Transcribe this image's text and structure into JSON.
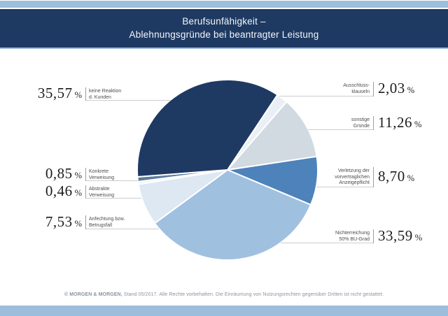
{
  "header": {
    "title_line1": "Berufsunfähigkeit –",
    "title_line2": "Ablehnungsgründe bei beantragter Leistung"
  },
  "footer": {
    "copyright_bold": "© MORGEN & MORGEN,",
    "copyright_rest": " Stand 05/2017. Alle Rechte vorbehalten. Die Einräumung von Nutzungsrechten gegenüber Dritten ist nicht gestattet."
  },
  "colors": {
    "accent_bar": "#9dbedb",
    "header_bg": "#1e3a63",
    "header_text": "#f4f6f8",
    "leader_line": "#c9cdd2",
    "divider_line": "#9aa0a8",
    "percent_text": "#1c1c1c",
    "label_text": "#4d4d4d",
    "footer_text": "#8a93a0",
    "pie_stroke": "#ffffff"
  },
  "chart_data": {
    "type": "pie",
    "title": "Berufsunfähigkeit – Ablehnungsgründe bei beantragter Leistung",
    "unit": "%",
    "legend_position": "callout-labels",
    "start_angle_deg": 33.6,
    "slices": [
      {
        "label": "Ausschlussklauseln",
        "label_lines": [
          "Ausschluss-",
          "klauseln"
        ],
        "value": 2.03,
        "value_text": "2,03",
        "color": "#e9eff5",
        "side": "right"
      },
      {
        "label": "sonstige Gründe",
        "label_lines": [
          "sonstige",
          "Gründe"
        ],
        "value": 11.26,
        "value_text": "11,26",
        "color": "#d1d9e1",
        "side": "right"
      },
      {
        "label": "Verletzung der vorvertraglichen Anzeigepflicht",
        "label_lines": [
          "Verletzung der",
          "vorvertraglichen",
          "Anzeigepflicht"
        ],
        "value": 8.7,
        "value_text": "8,70",
        "color": "#4d82bb",
        "side": "right"
      },
      {
        "label": "Nichterreichung 50% BU-Grad",
        "label_lines": [
          "Nichterreichung",
          "50% BU-Grad"
        ],
        "value": 33.59,
        "value_text": "33,59",
        "color": "#a0c0e0",
        "side": "right"
      },
      {
        "label": "Anfechtung bzw. Betrugsfall",
        "label_lines": [
          "Anfechtung bzw.",
          "Betrugsfall"
        ],
        "value": 7.53,
        "value_text": "7,53",
        "color": "#dde8f3",
        "side": "left"
      },
      {
        "label": "Abstrakte Verweisung",
        "label_lines": [
          "Abstrakte",
          "Verweisung"
        ],
        "value": 0.46,
        "value_text": "0,46",
        "color": "#eef3f9",
        "side": "left"
      },
      {
        "label": "Konkrete Verweisung",
        "label_lines": [
          "Konkrete",
          "Verweisung"
        ],
        "value": 0.85,
        "value_text": "0,85",
        "color": "#5c7c9e",
        "side": "left"
      },
      {
        "label": "keine Reaktion d. Kunden",
        "label_lines": [
          "keine Reaktion",
          "d. Kunden"
        ],
        "value": 35.57,
        "value_text": "35,57",
        "color": "#1e3a63",
        "side": "left"
      }
    ]
  }
}
